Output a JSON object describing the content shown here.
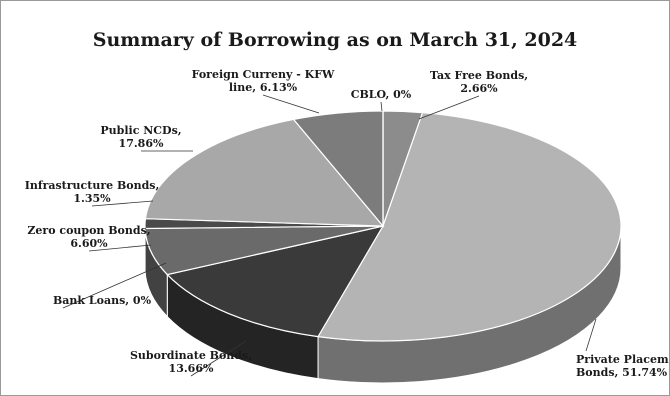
{
  "chart_data": {
    "type": "pie",
    "title": "Summary of Borrowing as on March 31, 2024",
    "slices": [
      {
        "label_lines": [
          "Tax Free Bonds,",
          "2.66%"
        ],
        "value": 2.66,
        "color": "#8c8c8c"
      },
      {
        "label_lines": [
          "Private Placement",
          "Bonds, 51.74%"
        ],
        "value": 51.74,
        "color": "#b4b4b4"
      },
      {
        "label_lines": [
          "Subordinate Bonds,",
          "13.66%"
        ],
        "value": 13.66,
        "color": "#3a3a3a"
      },
      {
        "label_lines": [
          "Bank Loans, 0%"
        ],
        "value": 0,
        "color": "#555555"
      },
      {
        "label_lines": [
          "Zero coupon Bonds,",
          "6.60%"
        ],
        "value": 6.6,
        "color": "#6a6a6a"
      },
      {
        "label_lines": [
          "Infrastructure Bonds,",
          "1.35%"
        ],
        "value": 1.35,
        "color": "#4a4a4a"
      },
      {
        "label_lines": [
          "Public NCDs,",
          "17.86%"
        ],
        "value": 17.86,
        "color": "#a8a8a8"
      },
      {
        "label_lines": [
          "Foreign Curreny - KFW",
          "line, 6.13%"
        ],
        "value": 6.13,
        "color": "#7c7c7c"
      },
      {
        "label_lines": [
          "CBLO, 0%"
        ],
        "value": 0,
        "color": "#6e6e6e"
      }
    ]
  }
}
